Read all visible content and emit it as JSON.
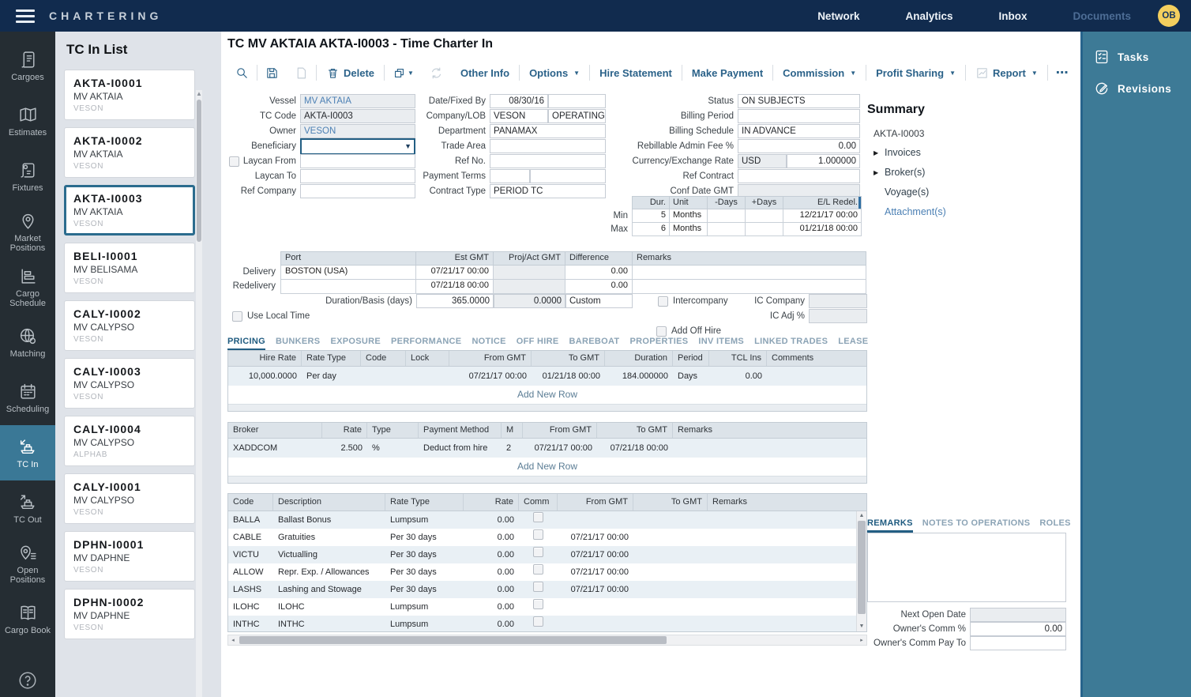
{
  "colors": {
    "topbar": "#112b4e",
    "accent_teal": "#3a7896",
    "link_blue": "#4c80b4",
    "tab_active": "#1f5b80",
    "avatar_yellow": "#f3cf5e"
  },
  "topbar": {
    "app_title": "CHARTERING",
    "nav": [
      {
        "label": "Network",
        "muted": false
      },
      {
        "label": "Analytics",
        "muted": false
      },
      {
        "label": "Inbox",
        "muted": false
      },
      {
        "label": "Documents",
        "muted": true
      }
    ],
    "avatar": "OB"
  },
  "rail": {
    "selected_index": 7,
    "items": [
      {
        "label": "Cargoes",
        "icon": "cargoes-icon"
      },
      {
        "label": "Estimates",
        "icon": "estimates-icon"
      },
      {
        "label": "Fixtures",
        "icon": "fixtures-icon"
      },
      {
        "label": "Market Positions",
        "icon": "market-positions-icon"
      },
      {
        "label": "Cargo Schedule",
        "icon": "cargo-schedule-icon"
      },
      {
        "label": "Matching",
        "icon": "matching-icon"
      },
      {
        "label": "Scheduling",
        "icon": "scheduling-icon"
      },
      {
        "label": "TC In",
        "icon": "tc-in-icon"
      },
      {
        "label": "TC Out",
        "icon": "tc-out-icon"
      },
      {
        "label": "Open Positions",
        "icon": "open-positions-icon"
      },
      {
        "label": "Cargo Book",
        "icon": "cargo-book-icon"
      }
    ]
  },
  "list_panel": {
    "title": "TC In List",
    "cards": [
      {
        "code": "AKTA-I0001",
        "vessel": "MV AKTAIA",
        "company": "VESON",
        "selected": false
      },
      {
        "code": "AKTA-I0002",
        "vessel": "MV AKTAIA",
        "company": "VESON",
        "selected": false
      },
      {
        "code": "AKTA-I0003",
        "vessel": "MV AKTAIA",
        "company": "VESON",
        "selected": true
      },
      {
        "code": "BELI-I0001",
        "vessel": "MV BELISAMA",
        "company": "VESON",
        "selected": false
      },
      {
        "code": "CALY-I0002",
        "vessel": "MV CALYPSO",
        "company": "VESON",
        "selected": false
      },
      {
        "code": "CALY-I0003",
        "vessel": "MV CALYPSO",
        "company": "VESON",
        "selected": false
      },
      {
        "code": "CALY-I0004",
        "vessel": "MV CALYPSO",
        "company": "ALPHAB",
        "selected": false
      },
      {
        "code": "CALY-I0001",
        "vessel": "MV CALYPSO",
        "company": "VESON",
        "selected": false
      },
      {
        "code": "DPHN-I0001",
        "vessel": "MV DAPHNE",
        "company": "VESON",
        "selected": false
      },
      {
        "code": "DPHN-I0002",
        "vessel": "MV DAPHNE",
        "company": "VESON",
        "selected": false
      }
    ]
  },
  "main": {
    "page_title": "TC MV AKTAIA AKTA-I0003 - Time Charter In",
    "toolbar": {
      "delete_label": "Delete",
      "other_info": "Other Info",
      "options": "Options",
      "hire_statement": "Hire Statement",
      "make_payment": "Make Payment",
      "commission": "Commission",
      "profit_sharing": "Profit Sharing",
      "report": "Report",
      "more": "⋯"
    },
    "form": {
      "left": [
        {
          "label": "Vessel",
          "value": "MV AKTAIA",
          "readonly": true,
          "link": true
        },
        {
          "label": "TC Code",
          "value": "AKTA-I0003",
          "readonly": true
        },
        {
          "label": "Owner",
          "value": "VESON",
          "readonly": true,
          "link": true
        },
        {
          "label": "Beneficiary",
          "value": "",
          "dropdown": true
        },
        {
          "label": "Laycan From",
          "value": "",
          "checkbox": true
        },
        {
          "label": "Laycan To",
          "value": ""
        },
        {
          "label": "Ref Company",
          "value": ""
        }
      ],
      "middle": [
        {
          "label": "Date/Fixed By",
          "value": "08/30/16",
          "value2": "",
          "split": 0.5,
          "align": "right"
        },
        {
          "label": "Company/LOB",
          "value": "VESON",
          "value2": "OPERATING",
          "split": 0.5
        },
        {
          "label": "Department",
          "value": "PANAMAX"
        },
        {
          "label": "Trade Area",
          "value": ""
        },
        {
          "label": "Ref No.",
          "value": ""
        },
        {
          "label": "Payment Terms",
          "value": "",
          "value2": "",
          "split": 0.35
        },
        {
          "label": "Contract Type",
          "value": "PERIOD TC"
        }
      ],
      "right": [
        {
          "label": "Status",
          "value": "ON SUBJECTS"
        },
        {
          "label": "Billing Period",
          "value": ""
        },
        {
          "label": "Billing Schedule",
          "value": "IN ADVANCE"
        },
        {
          "label": "Rebillable Admin Fee %",
          "value": "0.00",
          "align": "right"
        },
        {
          "label": "Currency/Exchange Rate",
          "value": "USD",
          "value2": "1.000000",
          "split": 0.4,
          "readonly1": true,
          "align2": "right"
        },
        {
          "label": "Ref Contract",
          "value": ""
        },
        {
          "label": "Conf Date GMT",
          "value": "",
          "readonly": true
        }
      ]
    },
    "minmax": {
      "headers": [
        "Dur.",
        "Unit",
        "-Days",
        "+Days",
        "E/L Redel."
      ],
      "rows": [
        {
          "label": "Min",
          "dur": "5",
          "unit": "Months",
          "minus": "",
          "plus": "",
          "el_redel": "12/21/17 00:00"
        },
        {
          "label": "Max",
          "dur": "6",
          "unit": "Months",
          "minus": "",
          "plus": "",
          "el_redel": "01/21/18 00:00"
        }
      ]
    },
    "delivery": {
      "headers": [
        "Port",
        "Est GMT",
        "Proj/Act GMT",
        "Difference",
        "Remarks"
      ],
      "rows": [
        {
          "label": "Delivery",
          "port": "BOSTON (USA)",
          "est": "07/21/17 00:00",
          "proj": "",
          "diff": "0.00",
          "remarks": ""
        },
        {
          "label": "Redelivery",
          "port": "",
          "est": "07/21/18 00:00",
          "proj": "",
          "diff": "0.00",
          "remarks": ""
        }
      ],
      "duration_basis_label": "Duration/Basis (days)",
      "duration_basis": "365.0000",
      "duration_basis2": "0.0000",
      "duration_basis_mode": "Custom"
    },
    "checks": {
      "use_local_time": "Use Local Time",
      "intercompany": "Intercompany",
      "ic_company": "IC Company",
      "ic_adj": "IC Adj %",
      "add_off_hire": "Add Off Hire"
    },
    "tabs": [
      "PRICING",
      "BUNKERS",
      "EXPOSURE",
      "PERFORMANCE",
      "NOTICE",
      "OFF HIRE",
      "BAREBOAT",
      "PROPERTIES",
      "INV ITEMS",
      "LINKED TRADES",
      "LEASE"
    ],
    "active_tab": 0,
    "pricing_table": {
      "headers": [
        "Hire Rate",
        "Rate Type",
        "Code",
        "Lock",
        "From GMT",
        "To GMT",
        "Duration",
        "Period",
        "TCL Ins",
        "Comments"
      ],
      "rows": [
        [
          "10,000.0000",
          "Per day",
          "",
          "",
          "07/21/17 00:00",
          "01/21/18 00:00",
          "184.000000",
          "Days",
          "0.00",
          ""
        ]
      ],
      "add_row": "Add New Row"
    },
    "broker_table": {
      "headers": [
        "Broker",
        "Rate",
        "Type",
        "Payment Method",
        "M",
        "From GMT",
        "To GMT",
        "Remarks"
      ],
      "rows": [
        [
          "XADDCOM",
          "2.500",
          "%",
          "Deduct from hire",
          "2",
          "07/21/17 00:00",
          "07/21/18 00:00",
          ""
        ]
      ],
      "add_row": "Add New Row"
    },
    "codes_table": {
      "headers": [
        "Code",
        "Description",
        "Rate Type",
        "Rate",
        "Comm",
        "From GMT",
        "To GMT",
        "Remarks"
      ],
      "rows": [
        [
          "BALLA",
          "Ballast Bonus",
          "Lumpsum",
          "0.00",
          "",
          "",
          ""
        ],
        [
          "CABLE",
          "Gratuities",
          "Per 30 days",
          "0.00",
          "07/21/17 00:00",
          "",
          ""
        ],
        [
          "VICTU",
          "Victualling",
          "Per 30 days",
          "0.00",
          "07/21/17 00:00",
          "",
          ""
        ],
        [
          "ALLOW",
          "Repr. Exp. / Allowances",
          "Per 30 days",
          "0.00",
          "07/21/17 00:00",
          "",
          ""
        ],
        [
          "LASHS",
          "Lashing and Stowage",
          "Per 30 days",
          "0.00",
          "07/21/17 00:00",
          "",
          ""
        ],
        [
          "ILOHC",
          "ILOHC",
          "Lumpsum",
          "0.00",
          "",
          "",
          ""
        ],
        [
          "INTHC",
          "INTHC",
          "Lumpsum",
          "0.00",
          "",
          "",
          ""
        ]
      ]
    },
    "summary": {
      "title": "Summary",
      "root": "AKTA-I0003",
      "items": [
        {
          "label": "Invoices",
          "arrow": true,
          "link": false
        },
        {
          "label": "Broker(s)",
          "arrow": true,
          "link": false
        },
        {
          "label": "Voyage(s)",
          "arrow": false,
          "link": false
        },
        {
          "label": "Attachment(s)",
          "arrow": false,
          "link": true
        }
      ]
    },
    "notes": {
      "tabs": [
        "REMARKS",
        "NOTES TO OPERATIONS",
        "ROLES"
      ],
      "active_tab": 0,
      "remarks_text": "",
      "fields": [
        {
          "label": "Next Open Date",
          "value": "",
          "readonly": true
        },
        {
          "label": "Owner's Comm %",
          "value": "0.00",
          "align": "right"
        },
        {
          "label": "Owner's Comm Pay To",
          "value": ""
        }
      ]
    }
  },
  "right_sidebar": {
    "tasks": "Tasks",
    "revisions": "Revisions"
  }
}
